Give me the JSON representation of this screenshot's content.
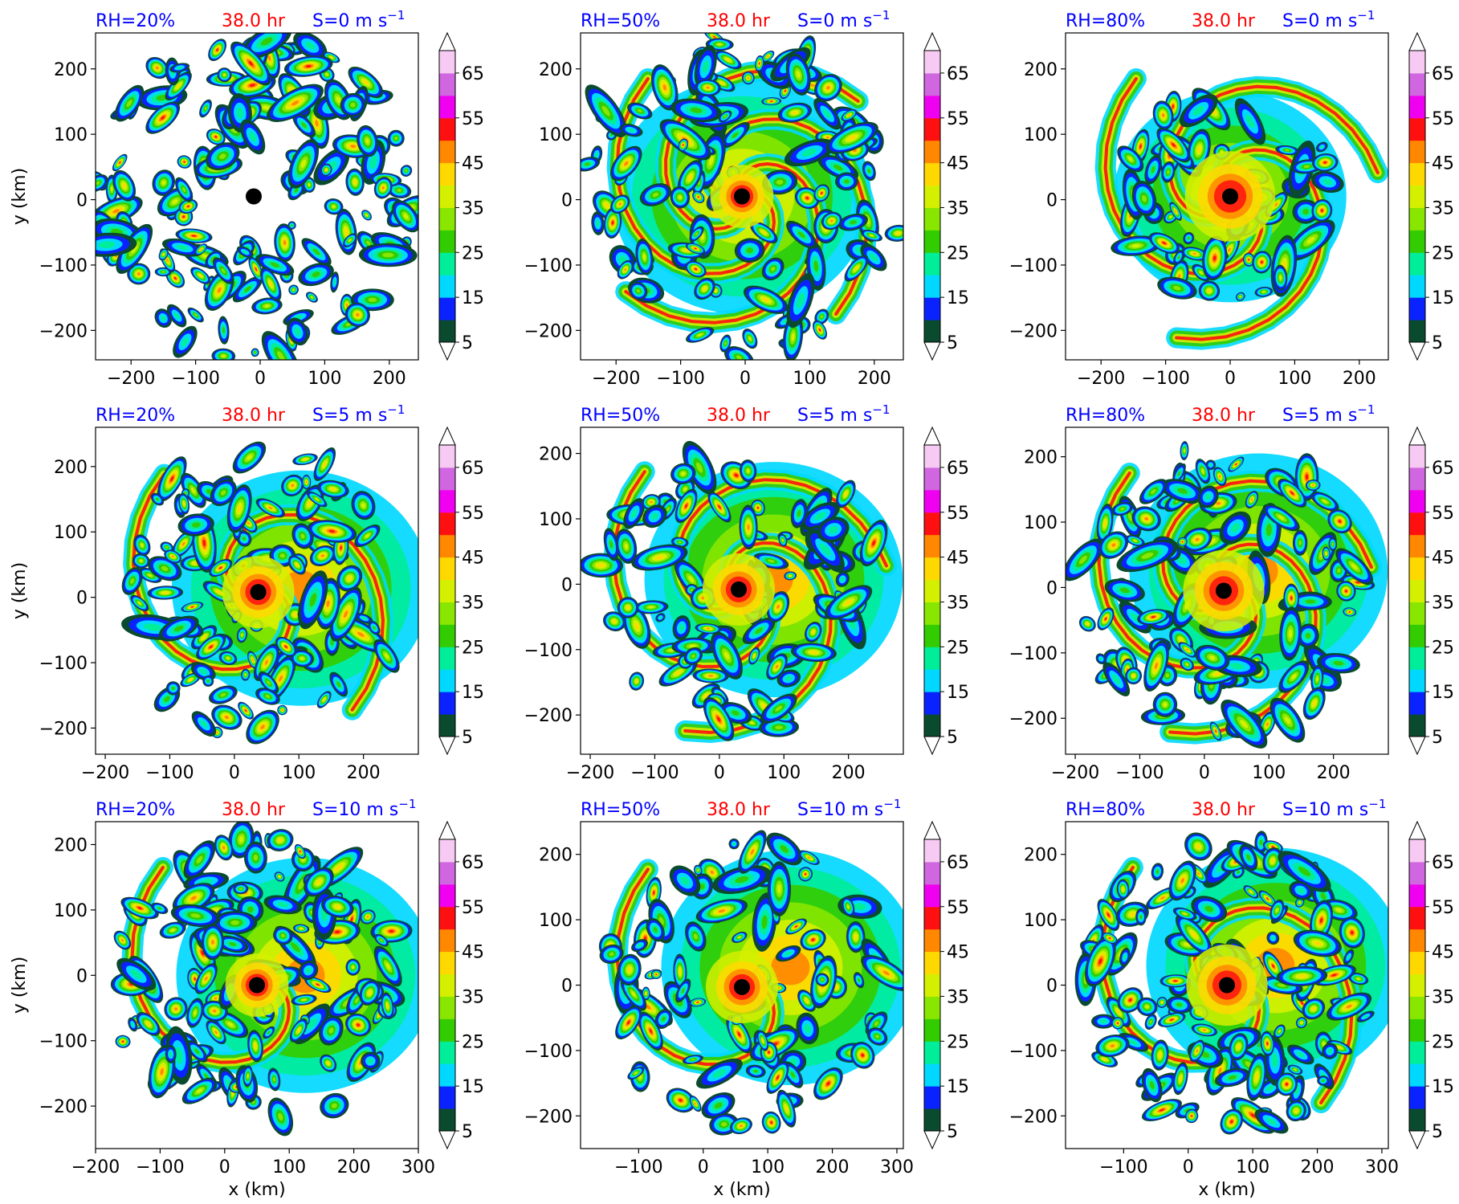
{
  "chart_data": {
    "type": "heatmap",
    "shared": {
      "xlabel": "x (km)",
      "ylabel": "y (km)",
      "colorbar": {
        "levels": [
          5,
          10,
          15,
          20,
          25,
          30,
          35,
          40,
          45,
          50,
          55,
          60,
          65,
          70
        ],
        "tick_labels": [
          "5",
          "15",
          "25",
          "35",
          "45",
          "55",
          "65"
        ],
        "colors": [
          "#0a4a2e",
          "#0a22ff",
          "#00d8ff",
          "#00ee9a",
          "#33cc00",
          "#88e600",
          "#d4f000",
          "#ffd800",
          "#ff8800",
          "#ff1010",
          "#f000f0",
          "#d066e0",
          "#f6caf2"
        ],
        "extend": "both"
      }
    },
    "panels": [
      {
        "title_rh": "RH=20%",
        "title_time": "38.0 hr",
        "title_shear": "S=0 m s",
        "title_shear_exp": "−1",
        "xlim": [
          -255,
          245
        ],
        "ylim": [
          -245,
          255
        ],
        "x_ticks": [
          "−200",
          "−100",
          "0",
          "100",
          "200"
        ],
        "y_ticks": [
          "200",
          "100",
          "0",
          "−100",
          "−200"
        ],
        "center": [
          -10,
          5
        ]
      },
      {
        "title_rh": "RH=50%",
        "title_time": "38.0 hr",
        "title_shear": "S=0 m s",
        "title_shear_exp": "−1",
        "xlim": [
          -255,
          245
        ],
        "ylim": [
          -245,
          255
        ],
        "x_ticks": [
          "−200",
          "−100",
          "0",
          "100",
          "200"
        ],
        "y_ticks": [
          "200",
          "100",
          "0",
          "−100",
          "−200"
        ],
        "center": [
          -5,
          5
        ]
      },
      {
        "title_rh": "RH=80%",
        "title_time": "38.0 hr",
        "title_shear": "S=0 m s",
        "title_shear_exp": "−1",
        "xlim": [
          -255,
          245
        ],
        "ylim": [
          -245,
          255
        ],
        "x_ticks": [
          "−200",
          "−100",
          "0",
          "100",
          "200"
        ],
        "y_ticks": [
          "200",
          "100",
          "0",
          "−100",
          "−200"
        ],
        "center": [
          0,
          5
        ]
      },
      {
        "title_rh": "RH=20%",
        "title_time": "38.0 hr",
        "title_shear": "S=5 m s",
        "title_shear_exp": "−1",
        "xlim": [
          -215,
          285
        ],
        "ylim": [
          -240,
          260
        ],
        "x_ticks": [
          "−200",
          "−100",
          "0",
          "100",
          "200"
        ],
        "y_ticks": [
          "200",
          "100",
          "0",
          "−100",
          "−200"
        ],
        "center": [
          37,
          8
        ]
      },
      {
        "title_rh": "RH=50%",
        "title_time": "38.0 hr",
        "title_shear": "S=5 m s",
        "title_shear_exp": "−1",
        "xlim": [
          -215,
          285
        ],
        "ylim": [
          -260,
          240
        ],
        "x_ticks": [
          "−200",
          "−100",
          "0",
          "100",
          "200"
        ],
        "y_ticks": [
          "200",
          "100",
          "0",
          "−100",
          "−200"
        ],
        "center": [
          30,
          -8
        ]
      },
      {
        "title_rh": "RH=80%",
        "title_time": "38.0 hr",
        "title_shear": "S=5 m s",
        "title_shear_exp": "−1",
        "xlim": [
          -215,
          285
        ],
        "ylim": [
          -255,
          245
        ],
        "x_ticks": [
          "−200",
          "−100",
          "0",
          "100",
          "200"
        ],
        "y_ticks": [
          "200",
          "100",
          "0",
          "−100",
          "−200"
        ],
        "center": [
          30,
          -5
        ]
      },
      {
        "title_rh": "RH=20%",
        "title_time": "38.0 hr",
        "title_shear": "S=10 m s",
        "title_shear_exp": "−1",
        "xlim": [
          -200,
          300
        ],
        "ylim": [
          -265,
          235
        ],
        "x_ticks": [
          "−200",
          "−100",
          "0",
          "100",
          "200",
          "300"
        ],
        "y_ticks": [
          "200",
          "100",
          "0",
          "−100",
          "−200"
        ],
        "center": [
          50,
          -15
        ]
      },
      {
        "title_rh": "RH=50%",
        "title_time": "38.0 hr",
        "title_shear": "S=10 m s",
        "title_shear_exp": "−1",
        "xlim": [
          -190,
          310
        ],
        "ylim": [
          -250,
          250
        ],
        "x_ticks": [
          "−100",
          "0",
          "100",
          "200",
          "300"
        ],
        "y_ticks": [
          "200",
          "100",
          "0",
          "−100",
          "−200"
        ],
        "center": [
          60,
          -3
        ]
      },
      {
        "title_rh": "RH=80%",
        "title_time": "38.0 hr",
        "title_shear": "S=10 m s",
        "title_shear_exp": "−1",
        "xlim": [
          -190,
          310
        ],
        "ylim": [
          -250,
          250
        ],
        "x_ticks": [
          "−100",
          "0",
          "100",
          "200",
          "300"
        ],
        "y_ticks": [
          "200",
          "100",
          "0",
          "−100",
          "−200"
        ],
        "center": [
          60,
          0
        ]
      }
    ]
  }
}
